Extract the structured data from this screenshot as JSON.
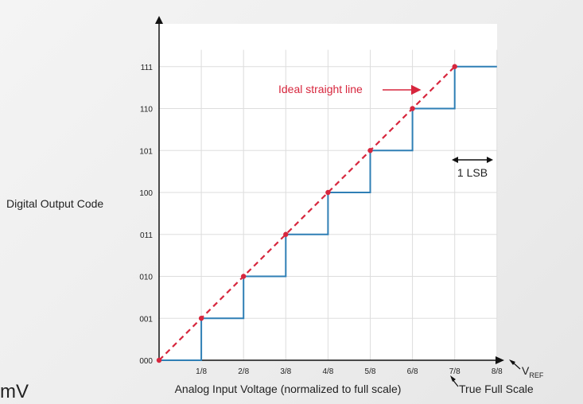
{
  "chart_data": {
    "type": "line",
    "xlabel": "Analog Input Voltage (normalized to full scale)",
    "ylabel": "Digital Output Code",
    "x_ticks": [
      "1/8",
      "2/8",
      "3/8",
      "4/8",
      "5/8",
      "6/8",
      "7/8",
      "8/8"
    ],
    "y_ticks": [
      "000",
      "001",
      "010",
      "011",
      "100",
      "101",
      "110",
      "111"
    ],
    "xlim": [
      0,
      8
    ],
    "ylim": [
      0,
      7
    ],
    "series": [
      {
        "type": "step",
        "x": [
          0,
          1,
          2,
          3,
          4,
          5,
          6,
          7,
          8
        ],
        "y": [
          0,
          1,
          2,
          3,
          4,
          5,
          6,
          7,
          7
        ],
        "color": "#2f7fb5"
      },
      {
        "type": "dashed-line",
        "x": [
          0,
          7
        ],
        "y": [
          0,
          7
        ],
        "color": "#d7263d"
      }
    ],
    "points": {
      "x": [
        0,
        1,
        2,
        3,
        4,
        5,
        6,
        7
      ],
      "y": [
        0,
        1,
        2,
        3,
        4,
        5,
        6,
        7
      ],
      "color": "#d7263d"
    },
    "annotations": {
      "ideal_line": "Ideal straight line",
      "lsb": "1 LSB",
      "vref": "V",
      "vref_sub": "REF",
      "true_full_scale": "True Full Scale"
    }
  },
  "side_text": "mV"
}
